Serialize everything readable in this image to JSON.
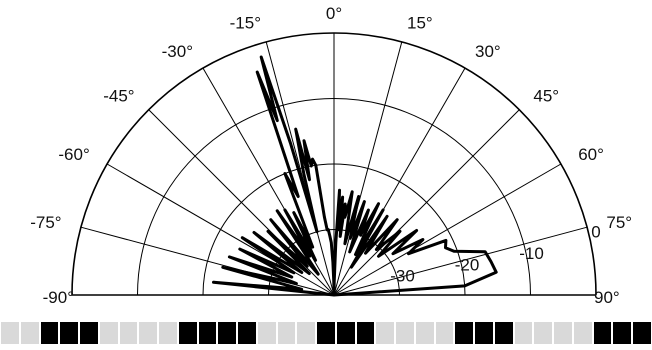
{
  "chart_data": {
    "type": "polar",
    "angle_ticks": [
      {
        "deg": -90,
        "label": "-90°"
      },
      {
        "deg": -75,
        "label": "-75°"
      },
      {
        "deg": -60,
        "label": "-60°"
      },
      {
        "deg": -45,
        "label": "-45°"
      },
      {
        "deg": -30,
        "label": "-30°"
      },
      {
        "deg": -15,
        "label": "-15°"
      },
      {
        "deg": 0,
        "label": "0°"
      },
      {
        "deg": 15,
        "label": "15°"
      },
      {
        "deg": 30,
        "label": "30°"
      },
      {
        "deg": 45,
        "label": "45°"
      },
      {
        "deg": 60,
        "label": "60°"
      },
      {
        "deg": 75,
        "label": "75°"
      },
      {
        "deg": 90,
        "label": "90°"
      }
    ],
    "radial_ticks": [
      {
        "value": -30,
        "label": "-30"
      },
      {
        "value": -20,
        "label": "-20"
      },
      {
        "value": -10,
        "label": "-10"
      },
      {
        "value": 0,
        "label": "0"
      }
    ],
    "r_range": [
      -40,
      0
    ],
    "grid": true,
    "series": [
      {
        "angles_deg": [
          -90,
          -84,
          -80,
          -76,
          -73,
          -70,
          -67,
          -64,
          -61,
          -58,
          -55,
          -52,
          -49,
          -46,
          -43,
          -40,
          -37,
          -34,
          -32,
          -30,
          -28,
          -26,
          -24,
          -22,
          -20,
          -19,
          -18,
          -17,
          -16,
          -15,
          -14,
          -13,
          -12,
          -11,
          -10,
          -9,
          -8,
          -7,
          -6,
          -5,
          -4,
          -3,
          -2,
          -1,
          0,
          1,
          2,
          3,
          4,
          5,
          6,
          7,
          8,
          10,
          12,
          14,
          16,
          18,
          20,
          22,
          24,
          26,
          28,
          30,
          32,
          34,
          37,
          40,
          43,
          46,
          49,
          52,
          55,
          58,
          61,
          64,
          67,
          70,
          74,
          78,
          82,
          86,
          90
        ],
        "values_db": [
          -40,
          -21.5,
          -35,
          -22.5,
          -34,
          -23,
          -33,
          -24,
          -33,
          -23.5,
          -34,
          -24.5,
          -35,
          -26,
          -34,
          -25,
          -36,
          -24.5,
          -33,
          -25,
          -34,
          -26,
          -32,
          -20,
          -24,
          -4,
          -12,
          -2,
          -16,
          -30,
          -21,
          -14,
          -22,
          -16,
          -20,
          -19,
          -20,
          -28,
          -30,
          -30,
          -31,
          -32,
          -35,
          -38,
          -40,
          -38,
          -32,
          -24,
          -30,
          -25,
          -31,
          -26,
          -28,
          -24,
          -32,
          -24.5,
          -31,
          -25,
          -33,
          -26,
          -30,
          -24.5,
          -33,
          -25,
          -35,
          -25.5,
          -32,
          -25,
          -30.5,
          -26,
          -31,
          -24,
          -29,
          -24,
          -27,
          -21,
          -21.5,
          -20.5,
          -16,
          -15.5,
          -15,
          -20,
          -40
        ]
      }
    ]
  },
  "pattern_strip": {
    "colors": {
      "dark": "#000000",
      "light": "#d9d9d9"
    },
    "cells": [
      0,
      0,
      1,
      1,
      1,
      0,
      0,
      0,
      0,
      1,
      1,
      1,
      1,
      0,
      0,
      0,
      1,
      1,
      1,
      0,
      0,
      0,
      0,
      1,
      1,
      1,
      0,
      0,
      0,
      0,
      1,
      1,
      1
    ]
  }
}
